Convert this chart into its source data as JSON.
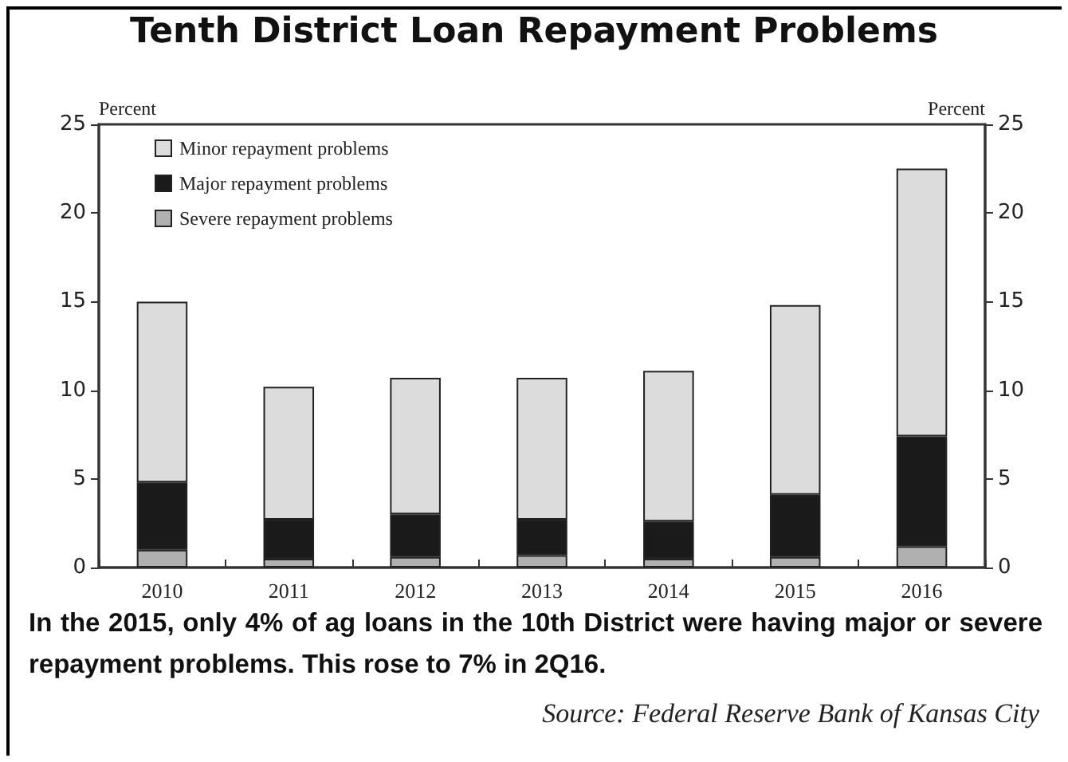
{
  "chart_data": {
    "type": "bar",
    "title": "Tenth District Loan Repayment Problems",
    "ylabel": "Percent",
    "y2label": "Percent",
    "categories": [
      "2010",
      "2011",
      "2012",
      "2013",
      "2014",
      "2015",
      "2016"
    ],
    "stacked": true,
    "series": [
      {
        "name": "Severe repayment problems",
        "color": "#b0b0b0",
        "values": [
          1.0,
          0.5,
          0.6,
          0.7,
          0.5,
          0.6,
          1.2
        ]
      },
      {
        "name": "Major repayment problems",
        "color": "#1a1a1a",
        "values": [
          3.8,
          2.2,
          2.4,
          2.0,
          2.1,
          3.5,
          6.2
        ]
      },
      {
        "name": "Minor repayment problems",
        "color": "#dcdcdc",
        "values": [
          10.2,
          7.5,
          7.7,
          8.0,
          8.5,
          10.7,
          15.1
        ]
      }
    ],
    "ylim": [
      0,
      25
    ],
    "yticks": [
      0,
      5,
      10,
      15,
      20,
      25
    ],
    "y2lim": [
      0,
      25
    ],
    "y2ticks": [
      0,
      5,
      10,
      15,
      20,
      25
    ],
    "grid": false,
    "legend": "top left",
    "annotations": [
      "In the 2015, only 4% of ag loans in the 10th District were having major or severe repayment problems. This rose to 7% in 2Q16.",
      "Source: Federal Reserve Bank of Kansas City"
    ]
  }
}
